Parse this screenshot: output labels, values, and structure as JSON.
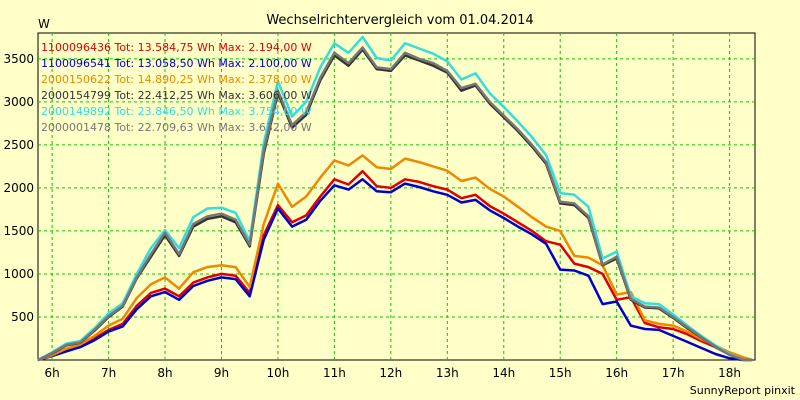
{
  "chart_data": {
    "type": "line",
    "title": "Wechselrichtervergleich vom 01.04.2014",
    "ylabel": "W",
    "xlabel": "",
    "ylim": [
      0,
      3800
    ],
    "xlim": [
      5.75,
      18.45
    ],
    "grid": true,
    "legend_position": "top-left",
    "y_ticks": [
      500,
      1000,
      1500,
      2000,
      2500,
      3000,
      3500
    ],
    "x_ticks": [
      6,
      7,
      8,
      9,
      10,
      11,
      12,
      13,
      14,
      15,
      16,
      17,
      18
    ],
    "x_tick_labels": [
      "6h",
      "7h",
      "8h",
      "9h",
      "10h",
      "11h",
      "12h",
      "13h",
      "14h",
      "15h",
      "16h",
      "17h",
      "18h"
    ],
    "x": [
      5.75,
      6.0,
      6.25,
      6.5,
      6.75,
      7.0,
      7.25,
      7.5,
      7.75,
      8.0,
      8.25,
      8.5,
      8.75,
      9.0,
      9.25,
      9.5,
      9.75,
      10.0,
      10.25,
      10.5,
      10.75,
      11.0,
      11.25,
      11.5,
      11.75,
      12.0,
      12.25,
      12.5,
      12.75,
      13.0,
      13.25,
      13.5,
      13.75,
      14.0,
      14.25,
      14.5,
      14.75,
      15.0,
      15.25,
      15.5,
      15.75,
      16.0,
      16.25,
      16.5,
      16.75,
      17.0,
      17.25,
      17.5,
      17.75,
      18.0,
      18.25,
      18.4
    ],
    "series": [
      {
        "name": "1100096436 Tot: 13.584,75 Wh Max: 2.194,00 W",
        "color": "#dd0000",
        "values": [
          0,
          50,
          110,
          160,
          250,
          350,
          420,
          630,
          780,
          830,
          740,
          900,
          960,
          1000,
          980,
          780,
          1450,
          1800,
          1600,
          1680,
          1900,
          2100,
          2040,
          2194,
          2020,
          2000,
          2100,
          2070,
          2020,
          1980,
          1880,
          1920,
          1790,
          1700,
          1600,
          1500,
          1380,
          1340,
          1120,
          1080,
          1000,
          700,
          730,
          430,
          380,
          360,
          300,
          220,
          150,
          80,
          25,
          0
        ]
      },
      {
        "name": "1100096541 Tot: 13.058,50 Wh Max: 2.100,00 W",
        "color": "#0000cc",
        "values": [
          0,
          45,
          100,
          150,
          230,
          330,
          390,
          590,
          740,
          790,
          700,
          860,
          920,
          960,
          940,
          740,
          1400,
          1760,
          1550,
          1630,
          1850,
          2030,
          1980,
          2100,
          1960,
          1950,
          2050,
          2010,
          1960,
          1920,
          1830,
          1860,
          1740,
          1650,
          1550,
          1460,
          1350,
          1050,
          1040,
          980,
          650,
          680,
          400,
          360,
          350,
          280,
          210,
          140,
          70,
          20,
          0,
          0
        ]
      },
      {
        "name": "2000150622 Tot: 14.890,25 Wh Max: 2.378,00 W",
        "color": "#ee8800",
        "values": [
          0,
          55,
          130,
          180,
          280,
          400,
          480,
          720,
          880,
          960,
          830,
          1020,
          1080,
          1100,
          1080,
          850,
          1580,
          2050,
          1780,
          1900,
          2120,
          2320,
          2260,
          2378,
          2240,
          2220,
          2340,
          2300,
          2250,
          2200,
          2080,
          2120,
          1990,
          1900,
          1780,
          1660,
          1550,
          1500,
          1210,
          1190,
          1100,
          760,
          790,
          460,
          420,
          400,
          330,
          240,
          165,
          90,
          30,
          0
        ]
      },
      {
        "name": "2000154799 Tot: 22.412,25 Wh Max: 3.606,00 W",
        "color": "#333333",
        "values": [
          0,
          75,
          170,
          200,
          340,
          500,
          620,
          950,
          1200,
          1450,
          1210,
          1550,
          1640,
          1670,
          1600,
          1320,
          2400,
          3100,
          2700,
          2850,
          3250,
          3540,
          3420,
          3606,
          3380,
          3360,
          3540,
          3480,
          3420,
          3340,
          3130,
          3190,
          2980,
          2820,
          2660,
          2480,
          2280,
          1820,
          1800,
          1650,
          1100,
          1180,
          700,
          610,
          600,
          490,
          370,
          260,
          150,
          60,
          0,
          0
        ]
      },
      {
        "name": "2000149892 Tot: 23.846,50 Wh Max: 3.754,00 W",
        "color": "#33dddd",
        "values": [
          0,
          90,
          190,
          220,
          370,
          540,
          660,
          1000,
          1300,
          1510,
          1300,
          1660,
          1760,
          1770,
          1710,
          1380,
          2520,
          3240,
          2830,
          3000,
          3400,
          3680,
          3570,
          3754,
          3510,
          3480,
          3680,
          3620,
          3560,
          3470,
          3260,
          3330,
          3100,
          2940,
          2770,
          2590,
          2380,
          1940,
          1920,
          1780,
          1180,
          1260,
          740,
          660,
          650,
          530,
          400,
          280,
          170,
          70,
          0,
          0
        ]
      },
      {
        "name": "2000001478 Tot: 22.709,63 Wh Max: 3.632,00 W",
        "color": "#777777",
        "values": [
          0,
          80,
          175,
          205,
          350,
          510,
          630,
          960,
          1230,
          1480,
          1230,
          1580,
          1670,
          1700,
          1630,
          1340,
          2440,
          3130,
          2730,
          2880,
          3280,
          3570,
          3450,
          3632,
          3400,
          3380,
          3570,
          3500,
          3450,
          3360,
          3160,
          3210,
          3000,
          2840,
          2680,
          2500,
          2300,
          1840,
          1820,
          1670,
          1110,
          1200,
          710,
          620,
          610,
          500,
          380,
          265,
          155,
          60,
          0,
          0
        ]
      }
    ],
    "footer": "SunnyReport pinxit"
  }
}
